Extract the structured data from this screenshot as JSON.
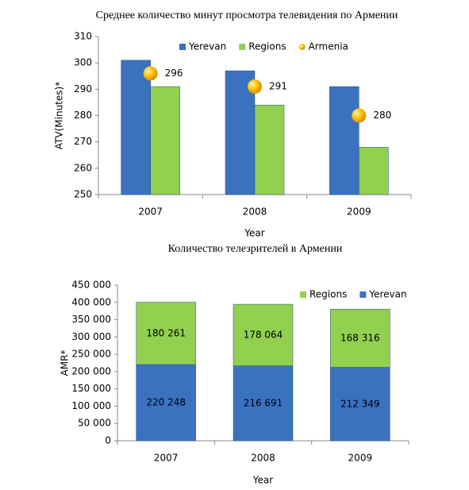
{
  "chart_data": [
    {
      "type": "bar",
      "title": "Среднее количество минут просмотра телевидения по Армении",
      "y_label": "ATV(Minutes)*",
      "x_label": "Year",
      "categories": [
        "2007",
        "2008",
        "2009"
      ],
      "series": [
        {
          "name": "Yerevan",
          "color": "#3a72c0",
          "type": "bar",
          "values": [
            301,
            297,
            291
          ]
        },
        {
          "name": "Regions",
          "color": "#92d050",
          "type": "bar",
          "values": [
            291,
            284,
            268
          ]
        },
        {
          "name": "Armenia",
          "color": "#ffc000",
          "type": "scatter",
          "values": [
            296,
            291,
            280
          ],
          "show_labels": true
        }
      ],
      "ylim": [
        250,
        310
      ],
      "yticks": [
        250,
        260,
        270,
        280,
        290,
        300,
        310
      ],
      "legend": "top"
    },
    {
      "type": "stacked_bar",
      "title": "Количество телезрителей в Армении",
      "y_label": "AMR*",
      "x_label": "Year",
      "categories": [
        "2007",
        "2008",
        "2009"
      ],
      "series": [
        {
          "name": "Yerevan",
          "color": "#3a72c0",
          "values": [
            220248,
            216691,
            212349
          ],
          "value_labels": [
            "220 248",
            "216 691",
            "212 349"
          ]
        },
        {
          "name": "Regions",
          "color": "#92d050",
          "values": [
            180261,
            178064,
            168316
          ],
          "value_labels": [
            "180 261",
            "178 064",
            "168 316"
          ]
        }
      ],
      "legend_order": [
        1,
        0
      ],
      "ylim": [
        0,
        450000
      ],
      "yticks": [
        0,
        {
          "value": 50000,
          "label": "50 000"
        },
        {
          "value": 100000,
          "label": "100 000"
        },
        {
          "value": 150000,
          "label": "150 000"
        },
        {
          "value": 200000,
          "label": "200 000"
        },
        {
          "value": 250000,
          "label": "250 000"
        },
        {
          "value": 300000,
          "label": "300 000"
        },
        {
          "value": 350000,
          "label": "350 000"
        },
        {
          "value": 400000,
          "label": "400 000"
        },
        {
          "value": 450000,
          "label": "450 000"
        }
      ],
      "legend": "top-right"
    }
  ]
}
